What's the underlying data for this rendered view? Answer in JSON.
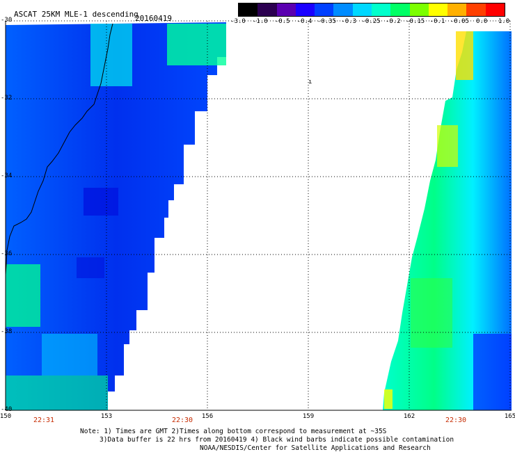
{
  "title": "ASCAT 25KM MLE-1 descending",
  "date": "20160419",
  "colorbar": {
    "labels": [
      "-3.0",
      "-1.0",
      "-0.5",
      "-0.4",
      "-0.35",
      "-0.3",
      "-0.25",
      "-0.2",
      "-0.15",
      "-0.1",
      "-0.05",
      "0.0",
      "1.0"
    ],
    "colors": [
      "#000000",
      "#2b0050",
      "#5a00b0",
      "#1a00ff",
      "#0040ff",
      "#008cff",
      "#00d8ff",
      "#00ffcc",
      "#00ff66",
      "#7cff00",
      "#ffff00",
      "#ffb000",
      "#ff4000",
      "#ff0000"
    ]
  },
  "axes": {
    "x_ticks": [
      "150",
      "153",
      "156",
      "159",
      "162",
      "165"
    ],
    "y_ticks": [
      "-30",
      "-32",
      "-34",
      "-36",
      "-38",
      "-40"
    ]
  },
  "times": [
    "22:31",
    "22:30",
    "22:30"
  ],
  "notes": {
    "line1": "Note: 1) Times are GMT 2)Times along bottom correspond to measurement at ~35S",
    "line2": "3)Data buffer is 22 hrs from 20160419 4) Black wind barbs indicate possible contamination",
    "line3": "NOAA/NESDIS/Center for Satellite Applications and Research"
  }
}
